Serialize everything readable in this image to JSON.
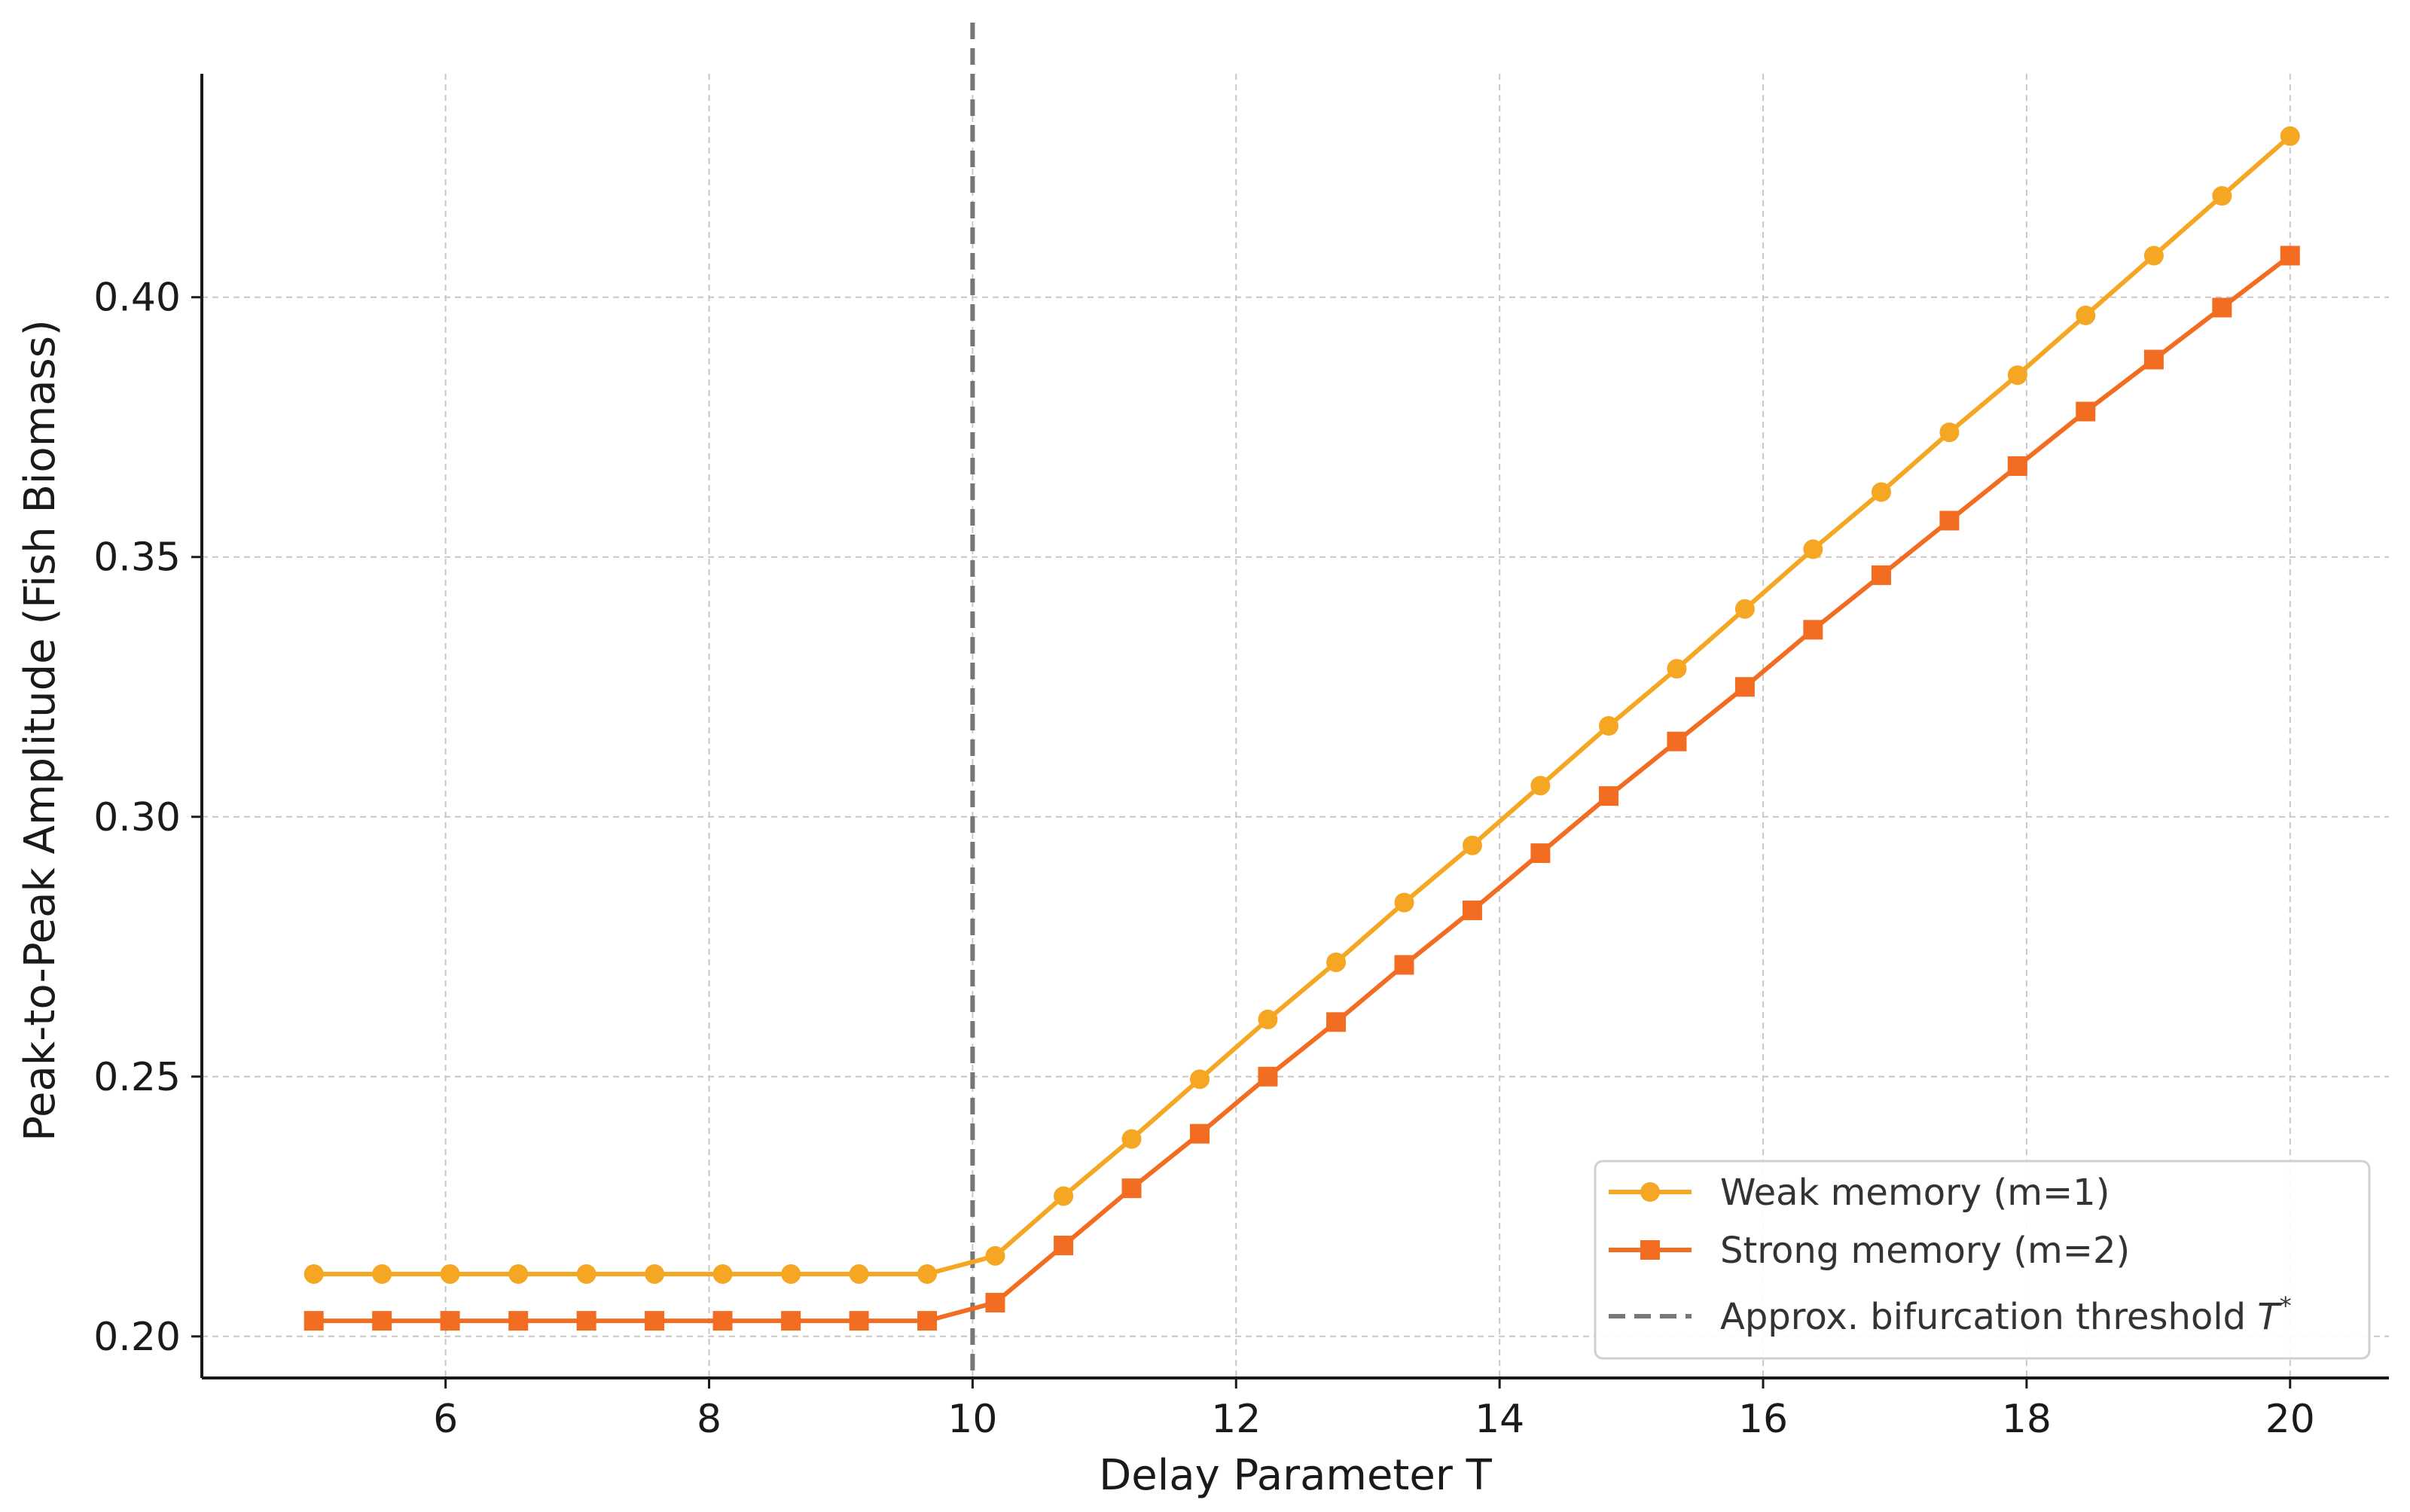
{
  "chart_data": {
    "type": "line",
    "title": "",
    "xlabel": "Delay Parameter T",
    "ylabel": "Peak-to-Peak Amplitude (Fish Biomass)",
    "xlim": [
      4.15,
      20.75
    ],
    "ylim": [
      0.192,
      0.443
    ],
    "xticks": [
      6,
      8,
      10,
      12,
      14,
      16,
      18,
      20
    ],
    "xtick_labels": [
      "6",
      "8",
      "10",
      "12",
      "14",
      "16",
      "18",
      "20"
    ],
    "yticks": [
      0.2,
      0.25,
      0.3,
      0.35,
      0.4
    ],
    "ytick_labels": [
      "0.20",
      "0.25",
      "0.30",
      "0.35",
      "0.40"
    ],
    "grid": true,
    "legend_position": "lower-right",
    "x": [
      5.0,
      5.517,
      6.034,
      6.552,
      7.069,
      7.586,
      8.103,
      8.621,
      9.138,
      9.655,
      10.172,
      10.69,
      11.207,
      11.724,
      12.241,
      12.759,
      13.276,
      13.793,
      14.31,
      14.828,
      15.345,
      15.862,
      16.379,
      16.897,
      17.414,
      17.931,
      18.448,
      18.966,
      19.483,
      20.0
    ],
    "series": [
      {
        "name": "Weak memory (m=1)",
        "color": "#f5a623",
        "marker": "circle",
        "values": [
          0.212,
          0.212,
          0.212,
          0.212,
          0.212,
          0.212,
          0.212,
          0.212,
          0.212,
          0.212,
          0.2155,
          0.227,
          0.238,
          0.2495,
          0.261,
          0.272,
          0.2835,
          0.2945,
          0.306,
          0.3175,
          0.3285,
          0.34,
          0.3515,
          0.3625,
          0.374,
          0.385,
          0.3965,
          0.408,
          0.4195,
          0.431
        ]
      },
      {
        "name": "Strong memory (m=2)",
        "color": "#f26c21",
        "marker": "square",
        "values": [
          0.203,
          0.203,
          0.203,
          0.203,
          0.203,
          0.203,
          0.203,
          0.203,
          0.203,
          0.203,
          0.2065,
          0.2175,
          0.2285,
          0.239,
          0.25,
          0.2605,
          0.2715,
          0.282,
          0.293,
          0.304,
          0.3145,
          0.325,
          0.336,
          0.3465,
          0.357,
          0.3675,
          0.378,
          0.388,
          0.398,
          0.408
        ]
      }
    ],
    "threshold": {
      "name": "Approx. bifurcation threshold",
      "symbol": "T",
      "superscript": "*",
      "x": 10,
      "color": "#777777",
      "style": "dashed"
    }
  }
}
